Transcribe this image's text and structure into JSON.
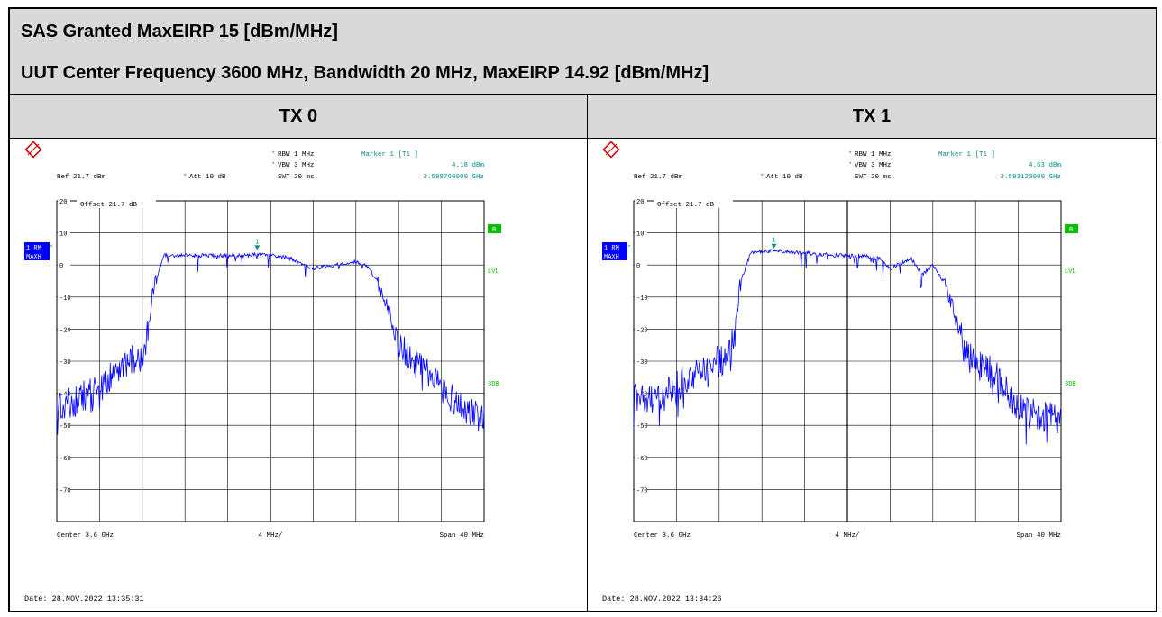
{
  "header": {
    "line1": "SAS Granted MaxEIRP 15 [dBm/MHz]",
    "line2": "UUT Center Frequency 3600 MHz, Bandwidth 20 MHz, MaxEIRP 14.92 [dBm/MHz]"
  },
  "columns": [
    "TX 0",
    "TX 1"
  ],
  "colors": {
    "trace": "#0000ff",
    "marker": "#008b8b",
    "green": "#00c000",
    "grid": "#000000",
    "blue_label_bg": "#0000ff"
  },
  "chart_data": [
    {
      "type": "line",
      "title": "TX 0",
      "settings": {
        "rbw": "RBW 1 MHz",
        "vbw": "VBW 3 MHz",
        "swt": "SWT 20 ms",
        "ref": "Ref  21.7 dBm",
        "att": "Att  10 dB",
        "offset": "Offset  21.7 dB"
      },
      "marker": {
        "label": "Marker 1 [T1 ]",
        "level": "4.18 dBm",
        "freq": "3.598760000 GHz",
        "number": "1",
        "x": 3.59876,
        "y": 4.18
      },
      "side_labels": {
        "trace_label": "1 RM",
        "trace_sub": "MAXH",
        "b": "B",
        "lvl": "LVL",
        "3db": "3DB",
        "nos": "*"
      },
      "bottom": {
        "center": "Center 3.6 GHz",
        "div": "4 MHz/",
        "span": "Span 40 MHz"
      },
      "date": "Date: 28.NOV.2022  13:35:31",
      "yticks": [
        "20",
        "10",
        "0",
        "-10",
        "-20",
        "-30",
        "-40",
        "-50",
        "-60",
        "-70"
      ],
      "ylim": [
        -80,
        20
      ],
      "xlim": [
        3.58,
        3.62
      ],
      "x": [
        3.58,
        3.582,
        3.584,
        3.586,
        3.587,
        3.588,
        3.5885,
        3.589,
        3.59,
        3.592,
        3.594,
        3.596,
        3.598,
        3.5988,
        3.6,
        3.602,
        3.603,
        3.604,
        3.606,
        3.608,
        3.609,
        3.61,
        3.611,
        3.612,
        3.614,
        3.616,
        3.618,
        3.62
      ],
      "values": [
        -45,
        -42,
        -38,
        -32,
        -30,
        -28,
        -22,
        -8,
        3,
        3,
        3,
        3,
        3,
        3.5,
        3,
        2,
        0,
        -1,
        0,
        1,
        0,
        -5,
        -13,
        -25,
        -32,
        -38,
        -45,
        -46
      ]
    },
    {
      "type": "line",
      "title": "TX 1",
      "settings": {
        "rbw": "RBW 1 MHz",
        "vbw": "VBW 3 MHz",
        "swt": "SWT 20 ms",
        "ref": "Ref  21.7 dBm",
        "att": "Att  10 dB",
        "offset": "Offset  21.7 dB"
      },
      "marker": {
        "label": "Marker 1 [T1 ]",
        "level": "4.63 dBm",
        "freq": "3.593120000 GHz",
        "number": "1",
        "x": 3.59312,
        "y": 4.63
      },
      "side_labels": {
        "trace_label": "1 RM",
        "trace_sub": "MAXH",
        "b": "B",
        "lvl": "LVL",
        "3db": "3DB",
        "nos": "*"
      },
      "bottom": {
        "center": "Center 3.6 GHz",
        "div": "4 MHz/",
        "span": "Span 40 MHz"
      },
      "date": "Date: 28.NOV.2022  13:34:26",
      "yticks": [
        "20",
        "10",
        "0",
        "-10",
        "-20",
        "-30",
        "-40",
        "-50",
        "-60",
        "-70"
      ],
      "ylim": [
        -80,
        20
      ],
      "xlim": [
        3.58,
        3.62
      ],
      "x": [
        3.58,
        3.582,
        3.584,
        3.586,
        3.588,
        3.589,
        3.5895,
        3.59,
        3.591,
        3.593,
        3.595,
        3.597,
        3.599,
        3.601,
        3.603,
        3.604,
        3.606,
        3.607,
        3.608,
        3.609,
        3.61,
        3.611,
        3.612,
        3.614,
        3.616,
        3.618,
        3.62
      ],
      "values": [
        -42,
        -41,
        -38,
        -33,
        -30,
        -28,
        -20,
        -5,
        4,
        4.5,
        4,
        3.5,
        3,
        3,
        2,
        -1,
        2,
        -3,
        0,
        -5,
        -15,
        -27,
        -31,
        -34,
        -45,
        -47,
        -48
      ]
    }
  ]
}
